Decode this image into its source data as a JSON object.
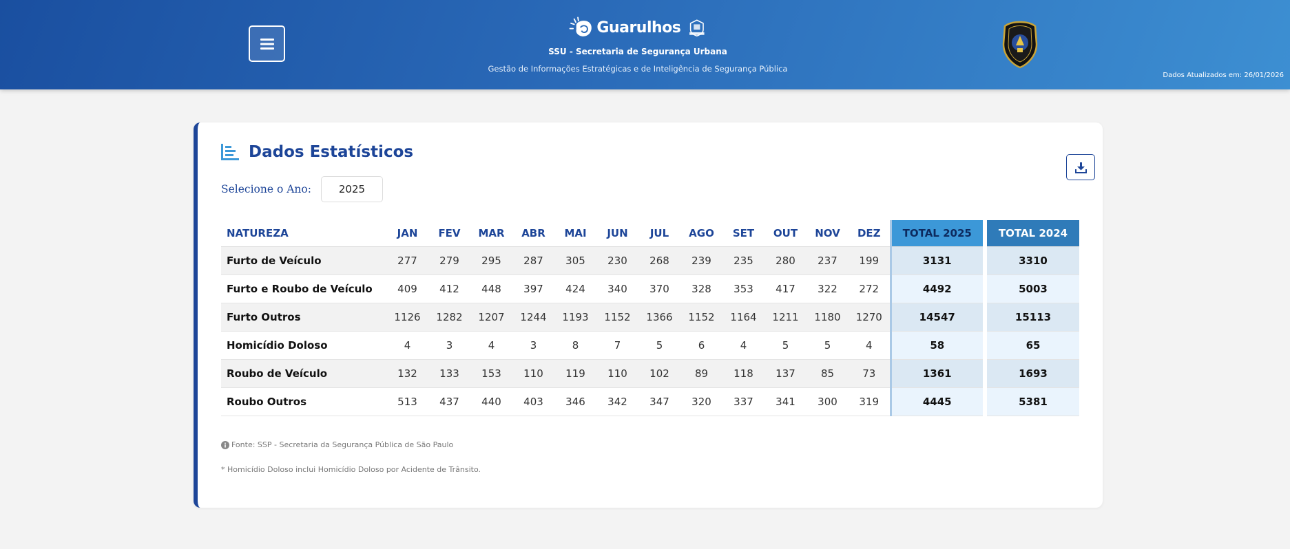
{
  "header": {
    "menu_label": "menu",
    "brand_name": "Guarulhos",
    "org": "SSU - Secretaria de Segurança Urbana",
    "subtitle": "Gestão de Informações Estratégicas e de Inteligência de Segurança Pública",
    "updated": "Dados Atualizados em: 26/01/2026"
  },
  "card": {
    "title": "Dados Estatísticos",
    "year_label": "Selecione o Ano:",
    "year_value": "2025",
    "download_label": "download"
  },
  "table": {
    "headers": [
      "NATUREZA",
      "JAN",
      "FEV",
      "MAR",
      "ABR",
      "MAI",
      "JUN",
      "JUL",
      "AGO",
      "SET",
      "OUT",
      "NOV",
      "DEZ",
      "TOTAL 2025",
      "TOTAL 2024"
    ],
    "rows": [
      {
        "natureza": "Furto de Veículo",
        "months": [
          "277",
          "279",
          "295",
          "287",
          "305",
          "230",
          "268",
          "239",
          "235",
          "280",
          "237",
          "199"
        ],
        "total_2025": "3131",
        "total_2024": "3310"
      },
      {
        "natureza": "Furto e Roubo de Veículo",
        "months": [
          "409",
          "412",
          "448",
          "397",
          "424",
          "340",
          "370",
          "328",
          "353",
          "417",
          "322",
          "272"
        ],
        "total_2025": "4492",
        "total_2024": "5003"
      },
      {
        "natureza": "Furto Outros",
        "months": [
          "1126",
          "1282",
          "1207",
          "1244",
          "1193",
          "1152",
          "1366",
          "1152",
          "1164",
          "1211",
          "1180",
          "1270"
        ],
        "total_2025": "14547",
        "total_2024": "15113"
      },
      {
        "natureza": "Homicídio Doloso",
        "months": [
          "4",
          "3",
          "4",
          "3",
          "8",
          "7",
          "5",
          "6",
          "4",
          "5",
          "5",
          "4"
        ],
        "total_2025": "58",
        "total_2024": "65"
      },
      {
        "natureza": "Roubo de Veículo",
        "months": [
          "132",
          "133",
          "153",
          "110",
          "119",
          "110",
          "102",
          "89",
          "118",
          "137",
          "85",
          "73"
        ],
        "total_2025": "1361",
        "total_2024": "1693"
      },
      {
        "natureza": "Roubo Outros",
        "months": [
          "513",
          "437",
          "440",
          "403",
          "346",
          "342",
          "347",
          "320",
          "337",
          "341",
          "300",
          "319"
        ],
        "total_2025": "4445",
        "total_2024": "5381"
      }
    ]
  },
  "notes": {
    "source": "Fonte: SSP - Secretaria da Segurança Pública de São Paulo",
    "homicide": "* Homicídio Doloso inclui Homicídio Doloso por Acidente de Trânsito."
  },
  "colors": {
    "header_start": "#1a4fa0",
    "header_end": "#3d8fd2",
    "accent": "#1d4598",
    "total_2025_header": "#3c98d8",
    "total_2024_header": "#2f7bb9"
  },
  "icons": {
    "menu": "hamburger-icon",
    "title": "chart-list-icon",
    "download": "download-icon",
    "info": "info-circle-icon"
  }
}
